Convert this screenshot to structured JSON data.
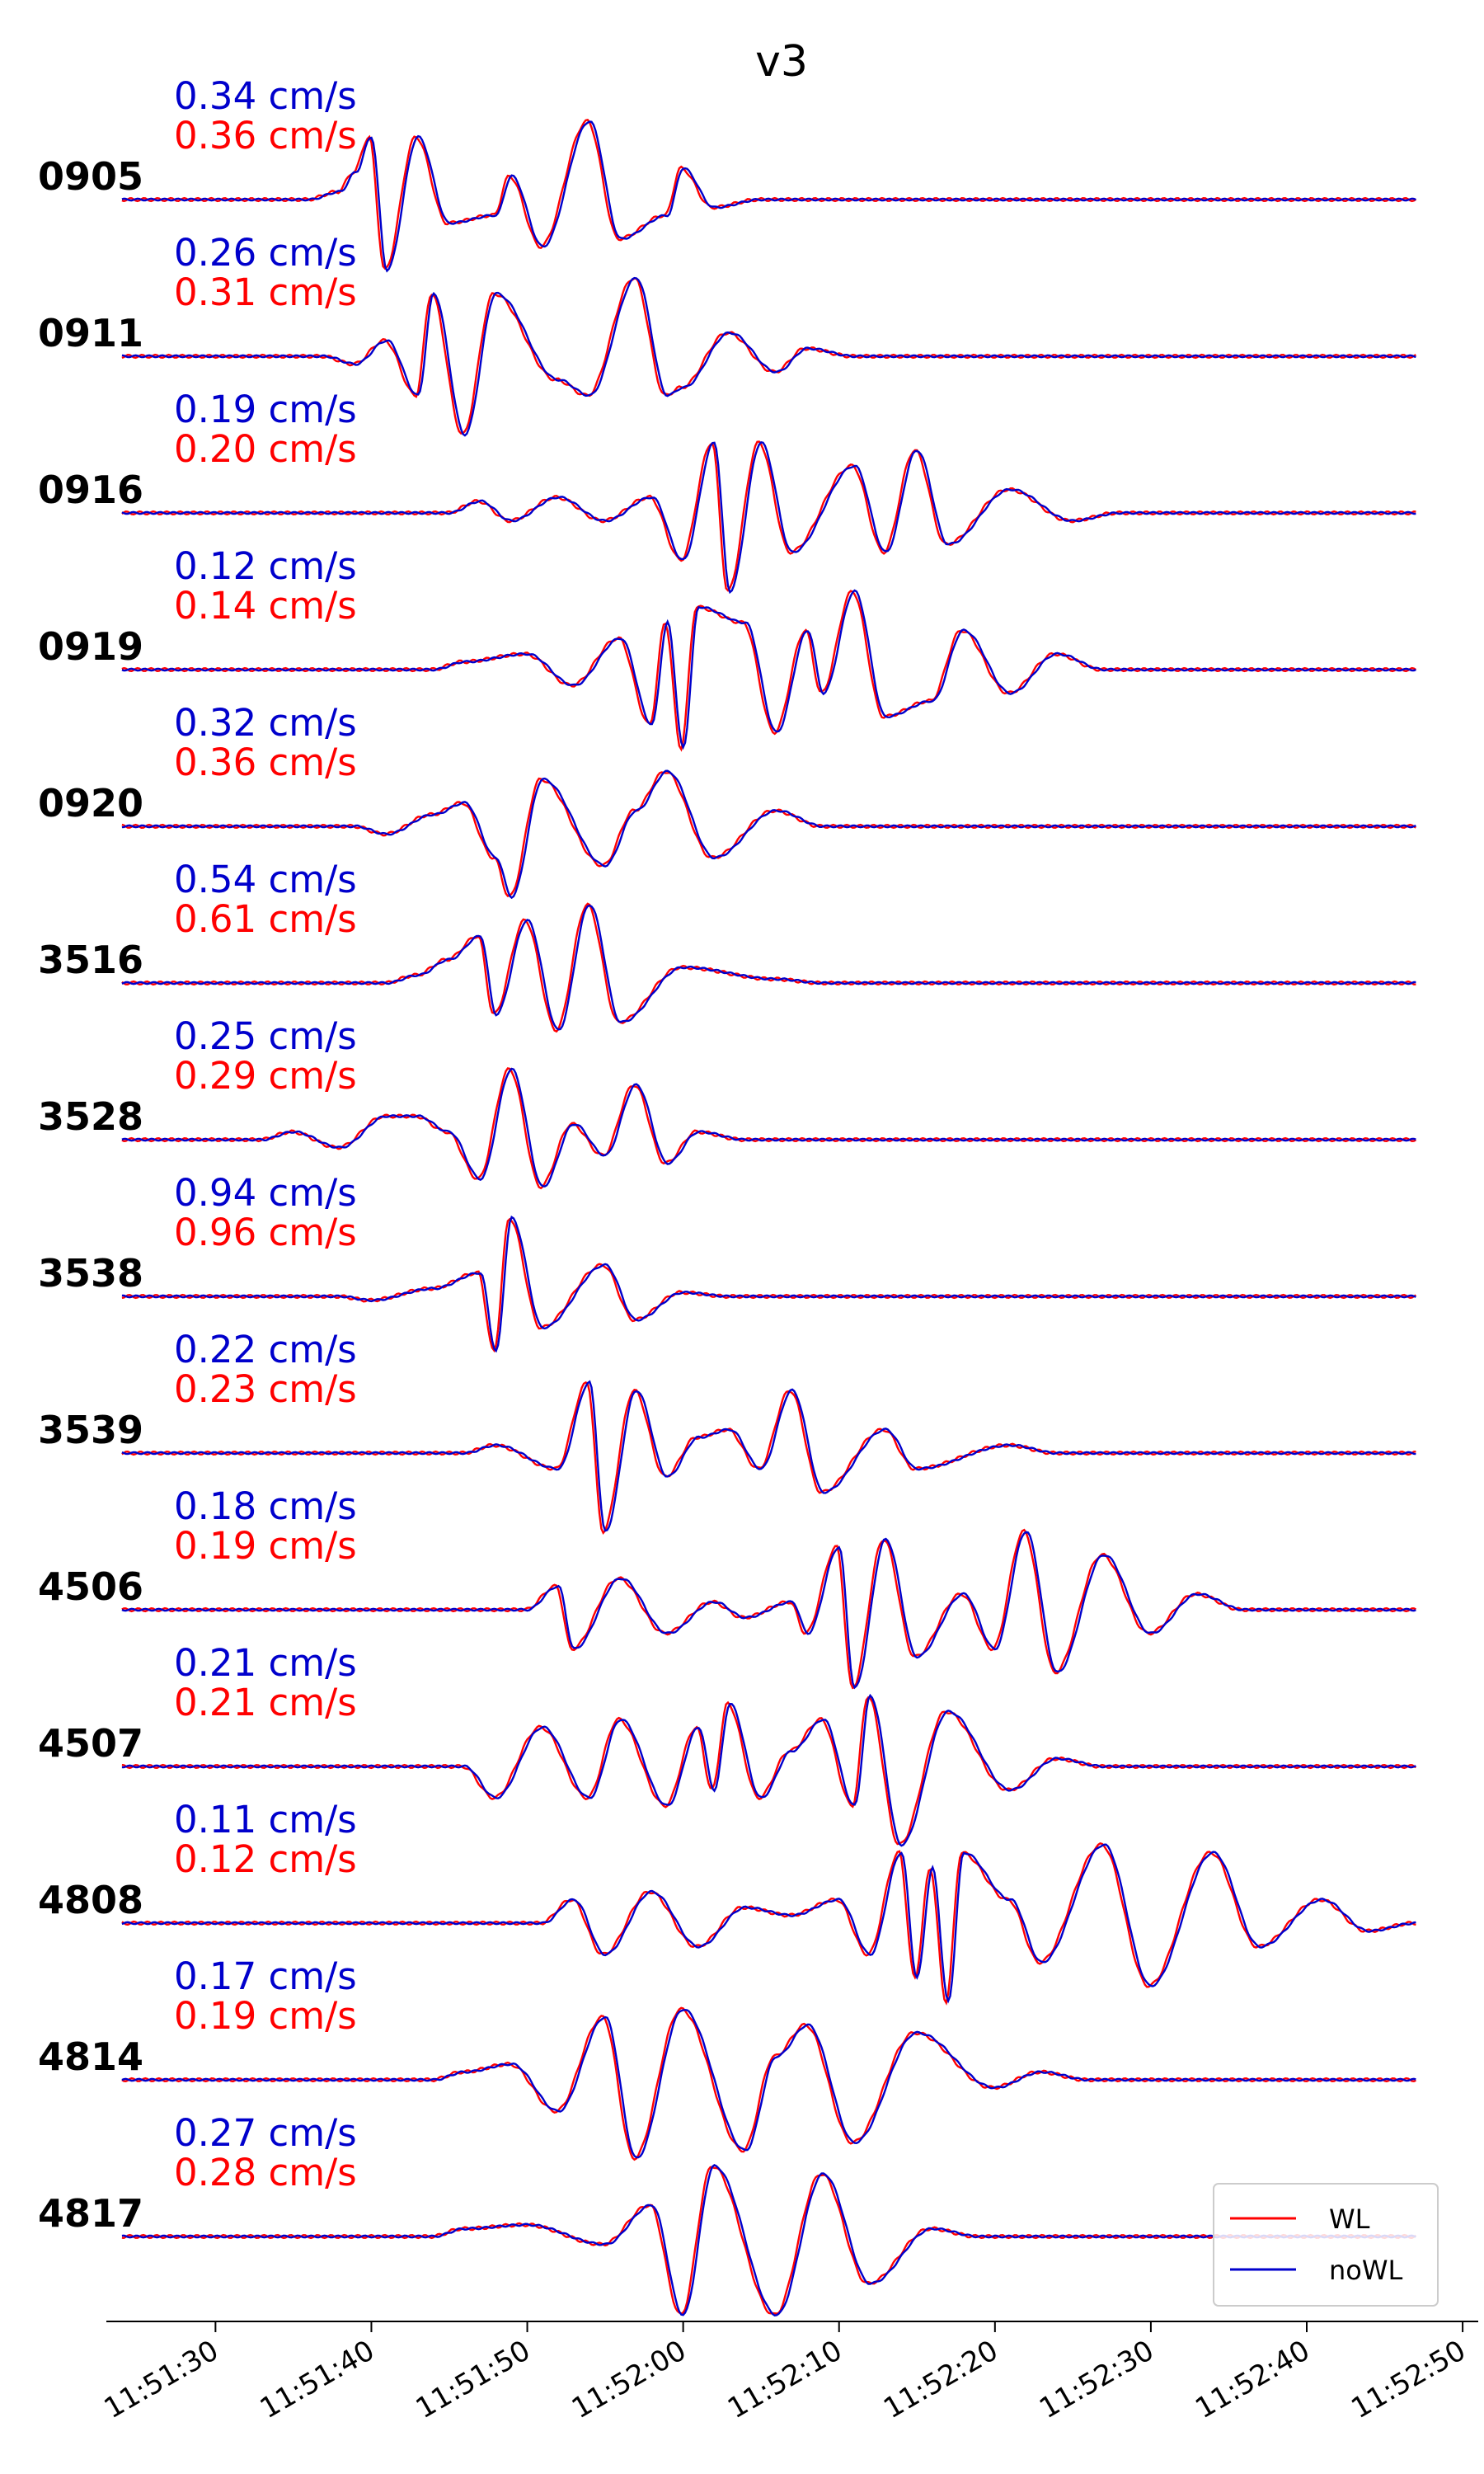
{
  "chart_data": {
    "type": "line",
    "title": "v3",
    "xlabel": "",
    "ylabel": "",
    "xlim": [
      "11:51:23",
      "11:52:51"
    ],
    "x_ticks": [
      "11:51:30",
      "11:51:40",
      "11:51:50",
      "11:52:00",
      "11:52:10",
      "11:52:20",
      "11:52:30",
      "11:52:40",
      "11:52:50"
    ],
    "legend": {
      "placement": "bottom-right",
      "entries": [
        {
          "label": "WL",
          "color": "#ff0000"
        },
        {
          "label": "noWL",
          "color": "#0000cc"
        }
      ]
    },
    "series_colors": {
      "WL": "#ff0000",
      "noWL": "#0000cc"
    },
    "stations": [
      {
        "name": "0905",
        "amp_noWL": "0.34 cm/s",
        "amp_WL": "0.36 cm/s",
        "peaks": [
          [
            "11:51:38",
            0.1
          ],
          [
            "11:51:39",
            0.35
          ],
          [
            "11:51:40",
            0.8
          ],
          [
            "11:51:41",
            -0.9
          ],
          [
            "11:51:43",
            0.8
          ],
          [
            "11:51:45",
            -0.3
          ],
          [
            "11:51:48",
            -0.2
          ],
          [
            "11:51:49",
            0.3
          ],
          [
            "11:51:51",
            -0.6
          ],
          [
            "11:51:54",
            1.0
          ],
          [
            "11:51:56",
            -0.5
          ],
          [
            "11:51:59",
            -0.2
          ],
          [
            "11:52:00",
            0.4
          ],
          [
            "11:52:02",
            -0.1
          ]
        ]
      },
      {
        "name": "0911",
        "amp_noWL": "0.26 cm/s",
        "amp_WL": "0.31 cm/s",
        "peaks": [
          [
            "11:51:39",
            -0.1
          ],
          [
            "11:51:41",
            0.2
          ],
          [
            "11:51:43",
            -0.5
          ],
          [
            "11:51:44",
            0.8
          ],
          [
            "11:51:46",
            -1.0
          ],
          [
            "11:51:48",
            0.8
          ],
          [
            "11:51:52",
            -0.3
          ],
          [
            "11:51:54",
            -0.5
          ],
          [
            "11:51:57",
            1.0
          ],
          [
            "11:51:59",
            -0.5
          ],
          [
            "11:52:00",
            -0.4
          ],
          [
            "11:52:03",
            0.3
          ],
          [
            "11:52:06",
            -0.2
          ],
          [
            "11:52:08",
            0.1
          ]
        ]
      },
      {
        "name": "0916",
        "amp_noWL": "0.19 cm/s",
        "amp_WL": "0.20 cm/s",
        "peaks": [
          [
            "11:51:47",
            0.15
          ],
          [
            "11:51:49",
            -0.1
          ],
          [
            "11:51:52",
            0.2
          ],
          [
            "11:51:55",
            -0.1
          ],
          [
            "11:51:58",
            0.2
          ],
          [
            "11:52:00",
            -0.6
          ],
          [
            "11:52:02",
            0.9
          ],
          [
            "11:52:03",
            -1.0
          ],
          [
            "11:52:05",
            0.9
          ],
          [
            "11:52:07",
            -0.5
          ],
          [
            "11:52:11",
            0.6
          ],
          [
            "11:52:13",
            -0.5
          ],
          [
            "11:52:15",
            0.8
          ],
          [
            "11:52:17",
            -0.4
          ],
          [
            "11:52:21",
            0.3
          ],
          [
            "11:52:25",
            -0.1
          ]
        ]
      },
      {
        "name": "0919",
        "amp_noWL": "0.12 cm/s",
        "amp_WL": "0.14 cm/s",
        "peaks": [
          [
            "11:51:46",
            0.1
          ],
          [
            "11:51:50",
            0.2
          ],
          [
            "11:51:53",
            -0.2
          ],
          [
            "11:51:56",
            0.4
          ],
          [
            "11:51:58",
            -0.7
          ],
          [
            "11:51:59",
            0.6
          ],
          [
            "11:52:00",
            -1.0
          ],
          [
            "11:52:01",
            0.8
          ],
          [
            "11:52:04",
            0.6
          ],
          [
            "11:52:06",
            -0.8
          ],
          [
            "11:52:08",
            0.5
          ],
          [
            "11:52:09",
            -0.3
          ],
          [
            "11:52:11",
            1.0
          ],
          [
            "11:52:13",
            -0.6
          ],
          [
            "11:52:16",
            -0.4
          ],
          [
            "11:52:18",
            0.5
          ],
          [
            "11:52:21",
            -0.3
          ],
          [
            "11:52:24",
            0.2
          ]
        ]
      },
      {
        "name": "0920",
        "amp_noWL": "0.32 cm/s",
        "amp_WL": "0.36 cm/s",
        "peaks": [
          [
            "11:51:41",
            -0.1
          ],
          [
            "11:51:44",
            0.15
          ],
          [
            "11:51:46",
            0.3
          ],
          [
            "11:51:48",
            -0.4
          ],
          [
            "11:51:49",
            -0.9
          ],
          [
            "11:51:51",
            0.6
          ],
          [
            "11:51:55",
            -0.5
          ],
          [
            "11:51:57",
            0.2
          ],
          [
            "11:51:59",
            0.7
          ],
          [
            "11:52:02",
            -0.4
          ],
          [
            "11:52:06",
            0.2
          ]
        ]
      },
      {
        "name": "3516",
        "amp_noWL": "0.54 cm/s",
        "amp_WL": "0.61 cm/s",
        "peaks": [
          [
            "11:51:43",
            0.1
          ],
          [
            "11:51:45",
            0.3
          ],
          [
            "11:51:47",
            0.6
          ],
          [
            "11:51:48",
            -0.4
          ],
          [
            "11:51:50",
            0.8
          ],
          [
            "11:51:52",
            -0.6
          ],
          [
            "11:51:54",
            1.0
          ],
          [
            "11:51:56",
            -0.5
          ],
          [
            "11:52:00",
            0.2
          ],
          [
            "11:52:06",
            0.05
          ]
        ]
      },
      {
        "name": "3528",
        "amp_noWL": "0.25 cm/s",
        "amp_WL": "0.29 cm/s",
        "peaks": [
          [
            "11:51:35",
            0.1
          ],
          [
            "11:51:38",
            -0.1
          ],
          [
            "11:51:41",
            0.3
          ],
          [
            "11:51:43",
            0.3
          ],
          [
            "11:51:45",
            0.1
          ],
          [
            "11:51:47",
            -0.5
          ],
          [
            "11:51:49",
            0.9
          ],
          [
            "11:51:51",
            -0.6
          ],
          [
            "11:51:53",
            0.2
          ],
          [
            "11:51:55",
            -0.2
          ],
          [
            "11:51:57",
            0.7
          ],
          [
            "11:51:59",
            -0.3
          ],
          [
            "11:52:01",
            0.1
          ]
        ]
      },
      {
        "name": "3538",
        "amp_noWL": "0.94 cm/s",
        "amp_WL": "0.96 cm/s",
        "peaks": [
          [
            "11:51:40",
            -0.05
          ],
          [
            "11:51:44",
            0.1
          ],
          [
            "11:51:47",
            0.3
          ],
          [
            "11:51:48",
            -0.7
          ],
          [
            "11:51:49",
            1.0
          ],
          [
            "11:51:51",
            -0.4
          ],
          [
            "11:51:55",
            0.4
          ],
          [
            "11:51:57",
            -0.3
          ],
          [
            "11:52:00",
            0.05
          ]
        ]
      },
      {
        "name": "3539",
        "amp_noWL": "0.22 cm/s",
        "amp_WL": "0.23 cm/s",
        "peaks": [
          [
            "11:51:48",
            0.1
          ],
          [
            "11:51:52",
            -0.2
          ],
          [
            "11:51:54",
            0.9
          ],
          [
            "11:51:55",
            -1.0
          ],
          [
            "11:51:57",
            0.8
          ],
          [
            "11:51:59",
            -0.3
          ],
          [
            "11:52:01",
            0.2
          ],
          [
            "11:52:03",
            0.3
          ],
          [
            "11:52:05",
            -0.2
          ],
          [
            "11:52:07",
            0.8
          ],
          [
            "11:52:09",
            -0.5
          ],
          [
            "11:52:13",
            0.3
          ],
          [
            "11:52:15",
            -0.2
          ],
          [
            "11:52:21",
            0.1
          ]
        ]
      },
      {
        "name": "4506",
        "amp_noWL": "0.18 cm/s",
        "amp_WL": "0.19 cm/s",
        "peaks": [
          [
            "11:51:52",
            0.3
          ],
          [
            "11:51:53",
            -0.5
          ],
          [
            "11:51:56",
            0.4
          ],
          [
            "11:51:59",
            -0.3
          ],
          [
            "11:52:02",
            0.1
          ],
          [
            "11:52:04",
            -0.1
          ],
          [
            "11:52:07",
            0.1
          ],
          [
            "11:52:08",
            -0.3
          ],
          [
            "11:52:10",
            0.8
          ],
          [
            "11:52:11",
            -1.0
          ],
          [
            "11:52:13",
            0.9
          ],
          [
            "11:52:15",
            -0.6
          ],
          [
            "11:52:18",
            0.2
          ],
          [
            "11:52:20",
            -0.5
          ],
          [
            "11:52:22",
            1.0
          ],
          [
            "11:52:24",
            -0.8
          ],
          [
            "11:52:27",
            0.7
          ],
          [
            "11:52:30",
            -0.3
          ],
          [
            "11:52:33",
            0.2
          ]
        ]
      },
      {
        "name": "4507",
        "amp_noWL": "0.21 cm/s",
        "amp_WL": "0.21 cm/s",
        "peaks": [
          [
            "11:51:48",
            -0.4
          ],
          [
            "11:51:51",
            0.5
          ],
          [
            "11:51:54",
            -0.4
          ],
          [
            "11:51:56",
            0.6
          ],
          [
            "11:51:59",
            -0.5
          ],
          [
            "11:52:01",
            0.5
          ],
          [
            "11:52:02",
            -0.3
          ],
          [
            "11:52:03",
            0.8
          ],
          [
            "11:52:05",
            -0.4
          ],
          [
            "11:52:07",
            0.2
          ],
          [
            "11:52:09",
            0.6
          ],
          [
            "11:52:11",
            -0.5
          ],
          [
            "11:52:12",
            0.9
          ],
          [
            "11:52:14",
            -1.0
          ],
          [
            "11:52:17",
            0.7
          ],
          [
            "11:52:21",
            -0.3
          ],
          [
            "11:52:24",
            0.1
          ]
        ]
      },
      {
        "name": "4808",
        "amp_noWL": "0.11 cm/s",
        "amp_WL": "0.12 cm/s",
        "peaks": [
          [
            "11:51:53",
            0.3
          ],
          [
            "11:51:55",
            -0.4
          ],
          [
            "11:51:58",
            0.4
          ],
          [
            "11:52:01",
            -0.3
          ],
          [
            "11:52:04",
            0.2
          ],
          [
            "11:52:07",
            0.1
          ],
          [
            "11:52:10",
            0.3
          ],
          [
            "11:52:12",
            -0.4
          ],
          [
            "11:52:14",
            0.9
          ],
          [
            "11:52:15",
            -0.7
          ],
          [
            "11:52:16",
            0.7
          ],
          [
            "11:52:17",
            -1.0
          ],
          [
            "11:52:18",
            0.9
          ],
          [
            "11:52:21",
            0.3
          ],
          [
            "11:52:23",
            -0.5
          ],
          [
            "11:52:27",
            1.0
          ],
          [
            "11:52:30",
            -0.8
          ],
          [
            "11:52:34",
            0.9
          ],
          [
            "11:52:37",
            -0.3
          ],
          [
            "11:52:41",
            0.3
          ],
          [
            "11:52:44",
            -0.1
          ]
        ]
      },
      {
        "name": "4814",
        "amp_noWL": "0.17 cm/s",
        "amp_WL": "0.19 cm/s",
        "peaks": [
          [
            "11:51:46",
            0.1
          ],
          [
            "11:51:49",
            0.2
          ],
          [
            "11:51:52",
            -0.4
          ],
          [
            "11:51:55",
            0.8
          ],
          [
            "11:51:57",
            -1.0
          ],
          [
            "11:52:00",
            0.9
          ],
          [
            "11:52:04",
            -0.9
          ],
          [
            "11:52:06",
            0.3
          ],
          [
            "11:52:08",
            0.7
          ],
          [
            "11:52:11",
            -0.8
          ],
          [
            "11:52:15",
            0.6
          ],
          [
            "11:52:20",
            -0.1
          ],
          [
            "11:52:23",
            0.1
          ]
        ]
      },
      {
        "name": "4817",
        "amp_noWL": "0.27 cm/s",
        "amp_WL": "0.28 cm/s",
        "peaks": [
          [
            "11:51:46",
            0.1
          ],
          [
            "11:51:50",
            0.15
          ],
          [
            "11:51:55",
            -0.1
          ],
          [
            "11:51:58",
            0.4
          ],
          [
            "11:52:00",
            -1.0
          ],
          [
            "11:52:02",
            0.9
          ],
          [
            "11:52:06",
            -1.0
          ],
          [
            "11:52:09",
            0.8
          ],
          [
            "11:52:12",
            -0.6
          ],
          [
            "11:52:16",
            0.1
          ]
        ]
      }
    ]
  }
}
